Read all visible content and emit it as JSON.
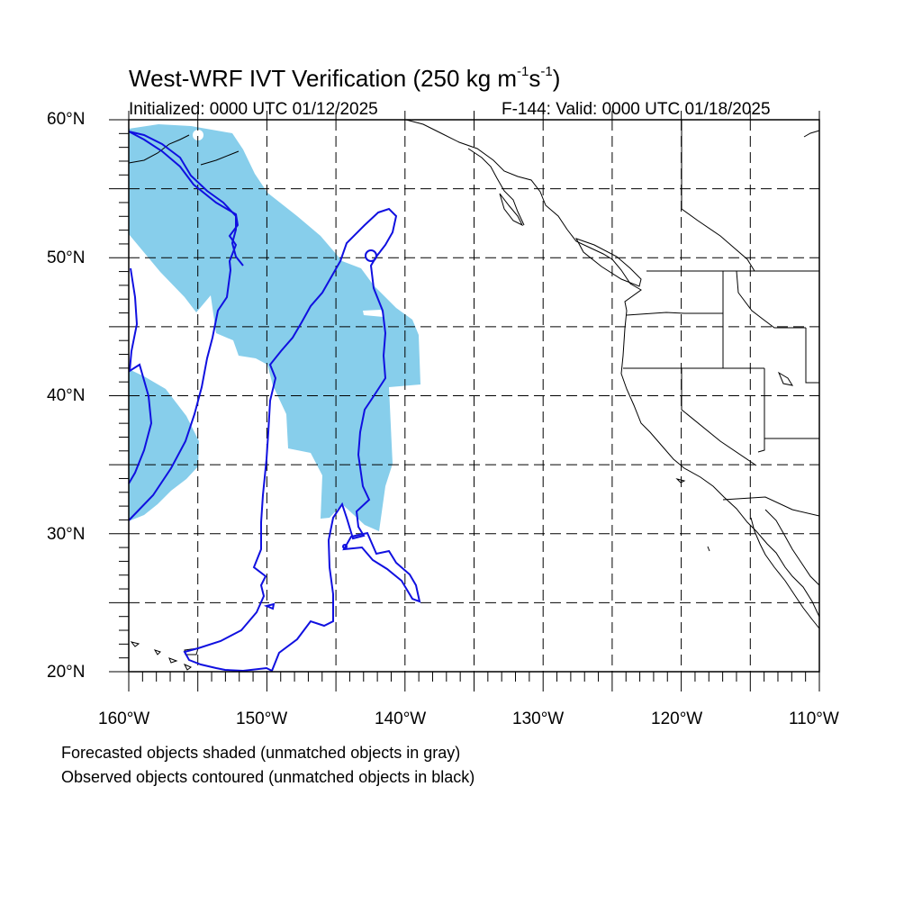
{
  "title": {
    "main": "West-WRF IVT Verification (250 kg m",
    "exp1": "-1",
    "mid": "s",
    "exp2": "-1",
    "close": ")"
  },
  "subtitle_left": "Initialized: 0000 UTC 01/12/2025",
  "subtitle_right": "F-144: Valid: 0000 UTC 01/18/2025",
  "map": {
    "lon_range": [
      -160,
      -110
    ],
    "lat_range": [
      20,
      60
    ],
    "grid": "dashed every 5 degrees",
    "y_labels": [
      {
        "text": "60°N",
        "lat": 60
      },
      {
        "text": "50°N",
        "lat": 50
      },
      {
        "text": "40°N",
        "lat": 40
      },
      {
        "text": "30°N",
        "lat": 30
      },
      {
        "text": "20°N",
        "lat": 20
      }
    ],
    "x_labels": [
      {
        "text": "160°W",
        "lon": -160
      },
      {
        "text": "150°W",
        "lon": -150
      },
      {
        "text": "140°W",
        "lon": -140
      },
      {
        "text": "130°W",
        "lon": -130
      },
      {
        "text": "120°W",
        "lon": -120
      },
      {
        "text": "110°W",
        "lon": -110
      }
    ],
    "forecast_fill_color": "#87CEEB",
    "observed_contour_color": "#1010E0",
    "coast_color": "#000000"
  },
  "notes": {
    "line1": "Forecasted objects shaded (unmatched objects in gray)",
    "line2": "Observed objects contoured (unmatched objects in black)"
  }
}
